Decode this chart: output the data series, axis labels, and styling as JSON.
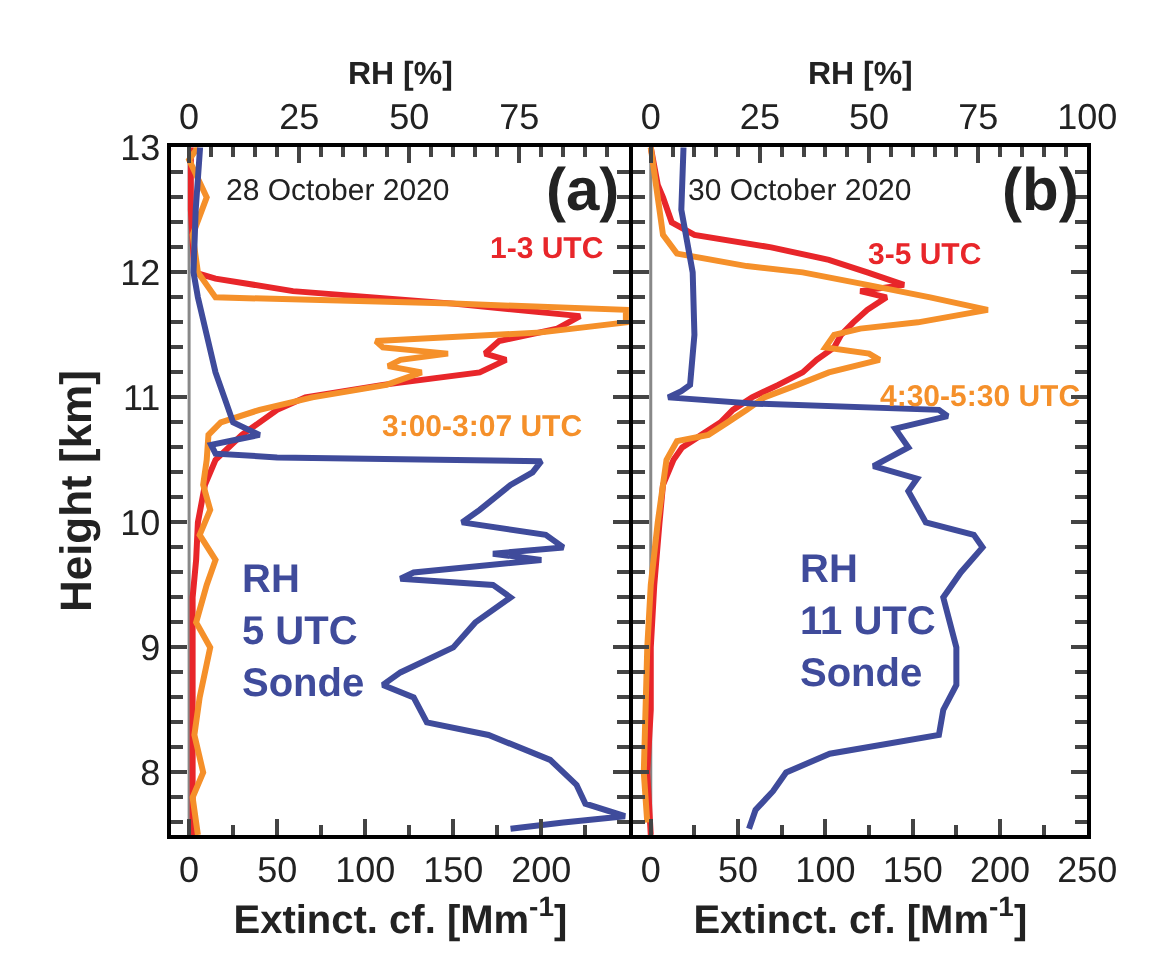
{
  "chart_data": [
    {
      "type": "line",
      "annotations": [
        "28 October 2020",
        "(a)"
      ],
      "xlabel": "Extinct. cf. [Mm$^{-1}$]",
      "x2label": "RH [%]",
      "ylabel": "Height [km]",
      "xlim": [
        -10,
        250
      ],
      "xticks": [
        0,
        50,
        100,
        150,
        200
      ],
      "x2lim": [
        -4,
        100
      ],
      "x2ticks": [
        0,
        25,
        50,
        75
      ],
      "ylim": [
        7.5,
        13
      ],
      "yticks": [
        8,
        9,
        10,
        11,
        12,
        13
      ],
      "marker": "none",
      "line_style": "solid",
      "ref_lines": [
        {
          "axis": "x",
          "value": 0,
          "color": "#888888"
        }
      ],
      "series": [
        {
          "name": "1-3 UTC",
          "color": "#e8262a",
          "values": [
            7.5,
            8.0,
            8.5,
            9.0,
            9.4,
            9.7,
            10.0,
            10.3,
            10.5,
            10.7,
            10.9,
            11.0,
            11.1,
            11.2,
            11.3,
            11.35,
            11.45,
            11.55,
            11.65,
            11.75,
            11.85,
            11.95,
            12.0,
            12.5,
            13.0
          ],
          "x": [
            2,
            2,
            2,
            2,
            2,
            4,
            5,
            9,
            15,
            30,
            50,
            66,
            110,
            165,
            180,
            168,
            176,
            209,
            222,
            150,
            59,
            15,
            3,
            1,
            1
          ]
        },
        {
          "name": "3:00-3:07 UTC",
          "color": "#f5902a",
          "values": [
            7.5,
            7.8,
            8.0,
            8.3,
            8.6,
            9.0,
            9.2,
            9.5,
            9.7,
            9.9,
            10.1,
            10.3,
            10.5,
            10.7,
            10.8,
            10.9,
            11.0,
            11.1,
            11.2,
            11.25,
            11.3,
            11.35,
            11.4,
            11.45,
            11.52,
            11.6,
            11.7,
            11.75,
            11.8,
            12.0,
            12.3,
            12.6,
            12.9,
            13.0
          ],
          "x": [
            5,
            2,
            8,
            3,
            6,
            12,
            4,
            10,
            15,
            6,
            12,
            8,
            10,
            11,
            18,
            40,
            70,
            112,
            132,
            113,
            120,
            147,
            110,
            106,
            200,
            248,
            248,
            150,
            15,
            5,
            2,
            10,
            0,
            5
          ]
        },
        {
          "name": "RH\n5 UTC\nSonde",
          "color": "#3f4b9b",
          "axis": "x2",
          "values": [
            7.55,
            7.6,
            7.65,
            7.75,
            7.9,
            8.0,
            8.1,
            8.3,
            8.4,
            8.6,
            8.7,
            8.8,
            9.0,
            9.2,
            9.4,
            9.5,
            9.55,
            9.6,
            9.7,
            9.75,
            9.8,
            9.9,
            10.0,
            10.1,
            10.3,
            10.4,
            10.49,
            10.52,
            10.55,
            10.62,
            10.7,
            10.8,
            11.0,
            11.2,
            11.5,
            11.8,
            12.0,
            12.5,
            13.0
          ],
          "x": [
            73,
            85,
            99,
            90,
            88,
            85,
            82,
            68,
            54,
            51,
            44,
            48,
            60,
            65,
            73,
            69,
            48,
            51,
            80,
            69,
            85,
            81,
            62,
            66,
            73,
            78,
            80,
            20,
            6,
            5,
            16,
            10,
            8,
            6,
            4,
            2,
            1,
            1.5,
            2.5
          ]
        }
      ]
    },
    {
      "type": "line",
      "annotations": [
        "30 October 2020",
        "(b)"
      ],
      "xlabel": "Extinct. cf. [Mm$^{-1}$]",
      "x2label": "RH [%]",
      "tick_labels": "x",
      "xlim": [
        -10,
        250
      ],
      "xticks": [
        0,
        50,
        100,
        150,
        200,
        250
      ],
      "x2lim": [
        -4,
        100
      ],
      "x2ticks": [
        0,
        25,
        50,
        75,
        100
      ],
      "ylim": [
        7.5,
        13
      ],
      "yticks": [
        8,
        9,
        10,
        11,
        12,
        13
      ],
      "marker": "none",
      "line_style": "solid",
      "ref_lines": [
        {
          "axis": "x",
          "value": 0,
          "color": "#888888"
        }
      ],
      "series": [
        {
          "name": "3-5 UTC",
          "color": "#e8262a",
          "values": [
            7.5,
            8.0,
            8.5,
            9.0,
            9.5,
            10.0,
            10.3,
            10.5,
            10.6,
            10.7,
            10.8,
            10.9,
            11.0,
            11.1,
            11.2,
            11.3,
            11.4,
            11.5,
            11.6,
            11.7,
            11.8,
            11.85,
            11.9,
            12.0,
            12.1,
            12.2,
            12.3,
            12.4,
            12.6,
            12.7,
            13.0
          ],
          "x": [
            0,
            -2,
            0,
            0,
            2,
            5,
            7,
            13,
            18,
            29,
            40,
            47,
            58,
            73,
            87,
            95,
            105,
            109,
            116,
            124,
            135,
            120,
            145,
            124,
            102,
            69,
            25,
            12,
            7,
            4,
            0
          ]
        },
        {
          "name": "4:30-5:30 UTC",
          "color": "#f5902a",
          "values": [
            7.6,
            8.0,
            9.0,
            9.5,
            10.0,
            10.5,
            10.65,
            10.7,
            10.8,
            10.9,
            11.0,
            11.1,
            11.2,
            11.3,
            11.35,
            11.4,
            11.5,
            11.55,
            11.6,
            11.7,
            11.8,
            11.9,
            12.0,
            12.05,
            12.15,
            12.3,
            12.6,
            13.0
          ],
          "x": [
            -2,
            -4,
            -2,
            0,
            4,
            9,
            15,
            33,
            44,
            55,
            65,
            84,
            102,
            131,
            125,
            100,
            105,
            120,
            153,
            193,
            160,
            124,
            87,
            55,
            15,
            7,
            4,
            0
          ]
        },
        {
          "name": "RH\n11 UTC\nSonde",
          "color": "#3f4b9b",
          "axis": "x2",
          "values": [
            7.55,
            7.7,
            7.85,
            8.0,
            8.15,
            8.3,
            8.5,
            8.7,
            9.0,
            9.4,
            9.6,
            9.8,
            9.9,
            10.0,
            10.25,
            10.35,
            10.45,
            10.6,
            10.75,
            10.85,
            10.9,
            10.95,
            11.0,
            11.05,
            11.1,
            11.5,
            12.0,
            12.5,
            13.0
          ],
          "x": [
            22.5,
            24,
            28,
            31,
            41,
            66,
            67,
            70,
            70,
            67,
            71,
            76,
            74,
            63,
            59,
            61,
            51,
            59,
            56,
            68,
            66,
            24,
            4,
            7,
            9,
            10,
            9.6,
            7,
            7.5
          ]
        }
      ]
    }
  ]
}
